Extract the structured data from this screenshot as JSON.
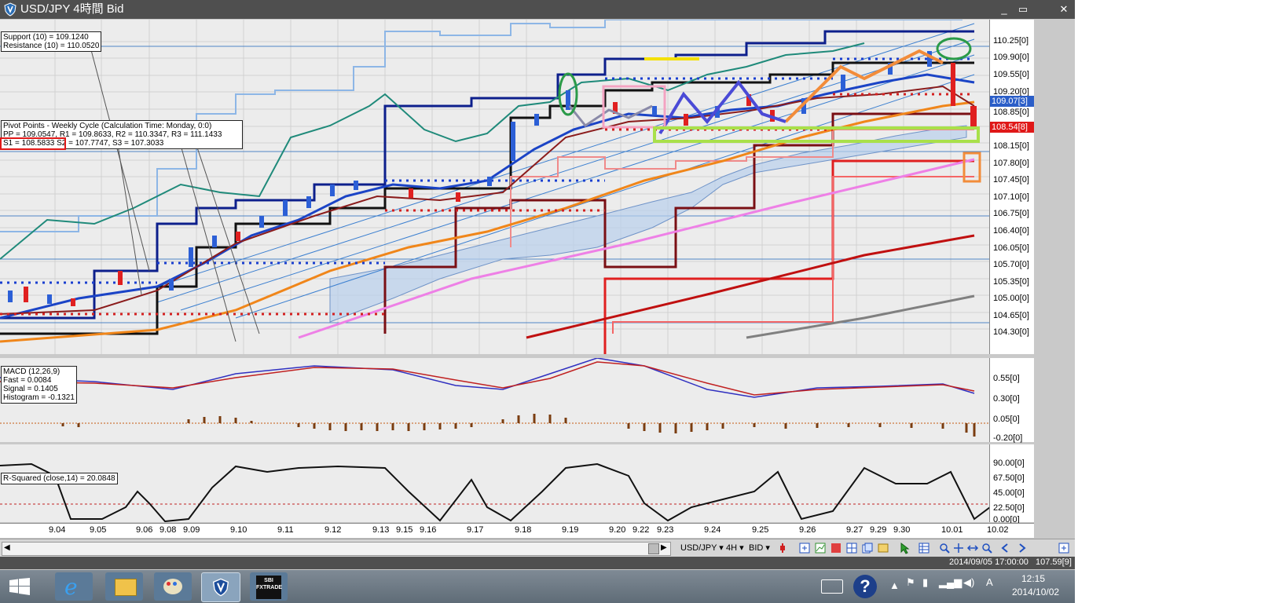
{
  "window": {
    "title": "USD/JPY 4時間 Bid",
    "controls": [
      "_",
      "▭",
      "✕"
    ]
  },
  "price_panel": {
    "support_info": [
      "Support (10) = 109.1240",
      "Resistance (10) = 110.0520"
    ],
    "pivot_info": [
      "Pivot Points - Weekly Cycle (Calculation Time: Monday, 0:0)",
      "PP = 109.0547, R1 = 109.8633, R2 = 110.3347, R3 = 111.1433",
      "S1 = 108.5833  S2 = 107.7747, S3 = 107.3033"
    ],
    "y_ticks": [
      "110.25[0]",
      "109.90[0]",
      "109.55[0]",
      "109.20[0]",
      "108.85[0]",
      "108.15[0]",
      "107.80[0]",
      "107.45[0]",
      "107.10[0]",
      "106.75[0]",
      "106.40[0]",
      "106.05[0]",
      "105.70[0]",
      "105.35[0]",
      "105.00[0]",
      "104.65[0]",
      "104.30[0]"
    ],
    "tag_blue": "109.07[3]",
    "tag_red": "108.54[8]"
  },
  "macd_panel": {
    "info": [
      "MACD (12,26,9)",
      "Fast = 0.0084",
      "Signal = 0.1405",
      "Histogram = -0.1321"
    ],
    "y_ticks": [
      "0.55[0]",
      "0.30[0]",
      "0.05[0]",
      "-0.20[0]"
    ]
  },
  "rsq_panel": {
    "info": "R-Squared (close,14) = 20.0848",
    "y_ticks": [
      "90.00[0]",
      "67.50[0]",
      "45.00[0]",
      "22.50[0]",
      "0.00[0]"
    ]
  },
  "x_axis": {
    "labels": [
      "9.04",
      "9.05",
      "9.06",
      "9.08",
      "9.09",
      "9.10",
      "9.11",
      "9.12",
      "9.13",
      "9.15",
      "9.16",
      "9.17",
      "9.18",
      "9.19",
      "9.20",
      "9.22",
      "9.23",
      "9.24",
      "9.25",
      "9.26",
      "9.27",
      "9.29",
      "9.30",
      "10.01",
      "10.02"
    ]
  },
  "toolbar": {
    "symbol": "USD/JPY ▾",
    "timeframe": "4H ▾",
    "side": "BID ▾",
    "icons": [
      "order-icon",
      "add-chart-icon",
      "indicator-icon",
      "color-icon",
      "layout-icon",
      "copy-icon",
      "template-icon",
      "cursor-icon",
      "table-icon",
      "zoom-in-icon",
      "zoom-out-icon",
      "fit-icon",
      "search-icon",
      "scroll-left-icon",
      "scroll-right-icon",
      "expand-icon"
    ]
  },
  "status": {
    "cursor_time": "2014/09/05 17:00:00",
    "cursor_price": "107.59[9]"
  },
  "taskbar": {
    "time": "12:15",
    "date": "2014/10/02",
    "ime": "A",
    "apps": [
      "start-icon",
      "ie-icon",
      "explorer-icon",
      "paint-icon",
      "shield-app-icon",
      "sbi-fxtrade-icon"
    ],
    "sbi_label": "SBI FXTRADE"
  }
}
